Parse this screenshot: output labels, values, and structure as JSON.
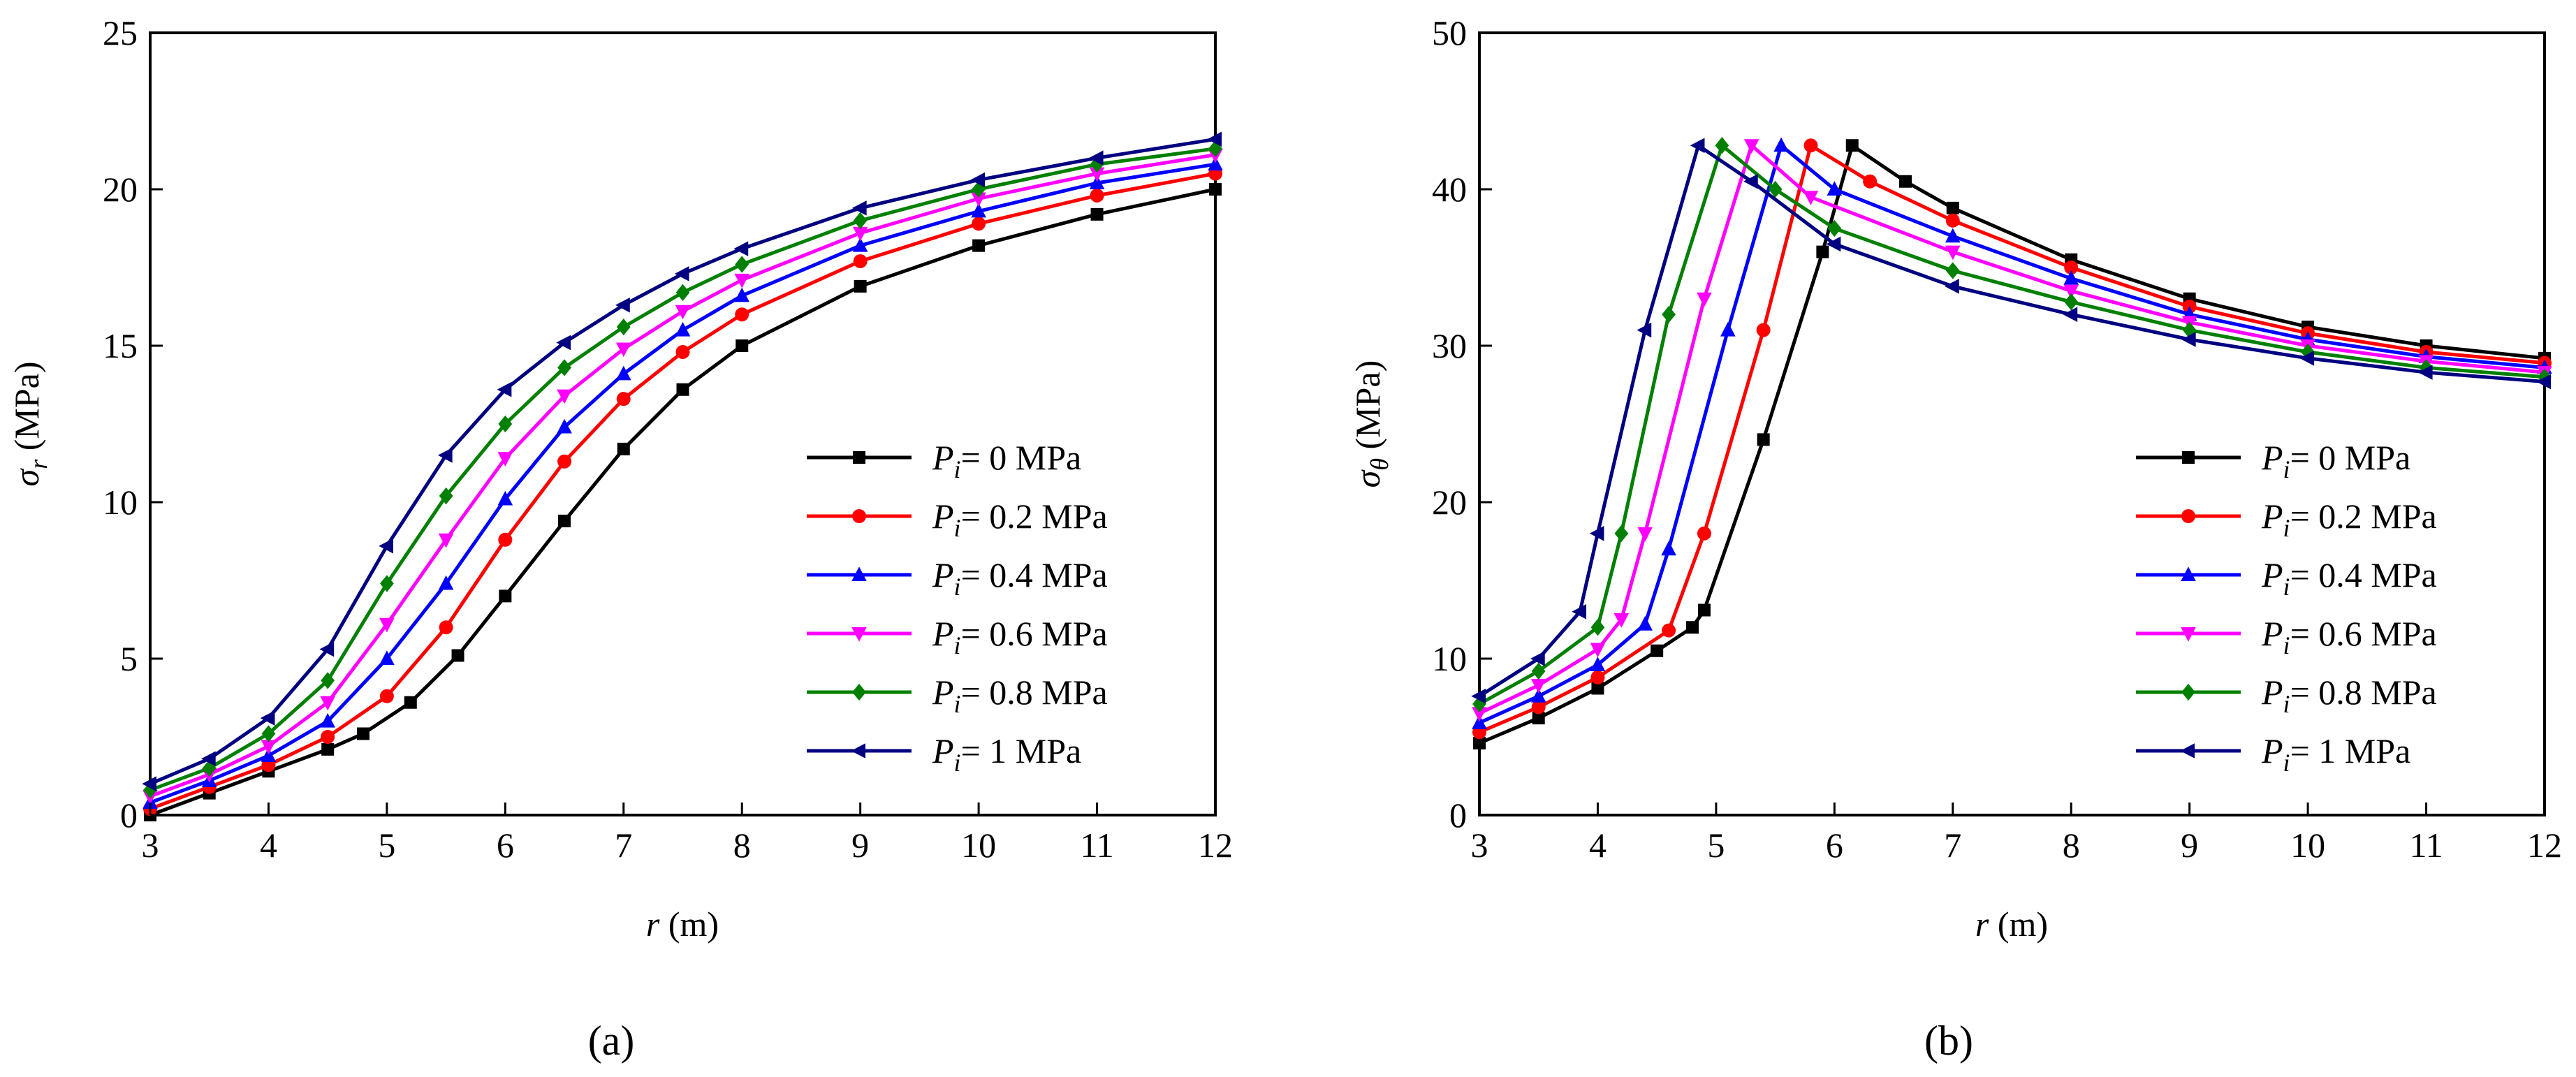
{
  "chart_data": [
    {
      "panel_label": "(a)",
      "type": "line",
      "xlabel": "r (m)",
      "xlabel_var": "r",
      "xlabel_unit": " (m)",
      "ylabel": "σr (MPa)",
      "ylabel_var": "σ",
      "ylabel_sub": "r",
      "ylabel_unit": " (MPa)",
      "xlim": [
        3,
        12
      ],
      "ylim": [
        0,
        25
      ],
      "xticks": [
        3,
        4,
        5,
        6,
        7,
        8,
        9,
        10,
        11,
        12
      ],
      "yticks": [
        0,
        5,
        10,
        15,
        20,
        25
      ],
      "legend_position": "center-right",
      "series": [
        {
          "name": "Pi = 0 MPa",
          "label_value": "= 0 MPa",
          "color": "#000000",
          "marker": "square",
          "x": [
            3,
            3.5,
            4,
            4.5,
            4.8,
            5.2,
            5.6,
            6,
            6.5,
            7,
            7.5,
            8,
            9,
            10,
            11,
            12
          ],
          "y": [
            0,
            0.7,
            1.4,
            2.1,
            2.6,
            3.6,
            5.1,
            7.0,
            9.4,
            11.7,
            13.6,
            15.0,
            16.9,
            18.2,
            19.2,
            20.0
          ]
        },
        {
          "name": "Pi = 0.2 MPa",
          "label_value": "= 0.2 MPa",
          "color": "#ff0000",
          "marker": "circle",
          "x": [
            3,
            3.5,
            4,
            4.5,
            5,
            5.5,
            6,
            6.5,
            7,
            7.5,
            8,
            9,
            10,
            11,
            12
          ],
          "y": [
            0.2,
            0.9,
            1.6,
            2.5,
            3.8,
            6.0,
            8.8,
            11.3,
            13.3,
            14.8,
            16.0,
            17.7,
            18.9,
            19.8,
            20.5
          ]
        },
        {
          "name": "Pi = 0.4 MPa",
          "label_value": "= 0.4 MPa",
          "color": "#0000ff",
          "marker": "triangle-up",
          "x": [
            3,
            3.5,
            4,
            4.5,
            5,
            5.5,
            6,
            6.5,
            7,
            7.5,
            8,
            9,
            10,
            11,
            12
          ],
          "y": [
            0.4,
            1.1,
            1.9,
            3.0,
            5.0,
            7.4,
            10.1,
            12.4,
            14.1,
            15.5,
            16.6,
            18.2,
            19.3,
            20.2,
            20.8
          ]
        },
        {
          "name": "Pi = 0.6 MPa",
          "label_value": "= 0.6 MPa",
          "color": "#ff00ff",
          "marker": "triangle-down",
          "x": [
            3,
            3.5,
            4,
            4.5,
            5,
            5.5,
            6,
            6.5,
            7,
            7.5,
            8,
            9,
            10,
            11,
            12
          ],
          "y": [
            0.6,
            1.3,
            2.2,
            3.6,
            6.1,
            8.8,
            11.4,
            13.4,
            14.9,
            16.1,
            17.1,
            18.6,
            19.7,
            20.5,
            21.1
          ]
        },
        {
          "name": "Pi = 0.8 MPa",
          "label_value": "= 0.8 MPa",
          "color": "#008000",
          "marker": "diamond",
          "x": [
            3,
            3.5,
            4,
            4.5,
            5,
            5.5,
            6,
            6.5,
            7,
            7.5,
            8,
            9,
            10,
            11,
            12
          ],
          "y": [
            0.8,
            1.5,
            2.6,
            4.3,
            7.4,
            10.2,
            12.5,
            14.3,
            15.6,
            16.7,
            17.6,
            19.0,
            20.0,
            20.8,
            21.3
          ]
        },
        {
          "name": "Pi = 1 MPa",
          "label_value": "= 1 MPa",
          "color": "#000080",
          "marker": "triangle-left",
          "x": [
            3,
            3.5,
            4,
            4.5,
            5,
            5.5,
            6,
            6.5,
            7,
            7.5,
            8,
            9,
            10,
            11,
            12
          ],
          "y": [
            1.0,
            1.8,
            3.1,
            5.3,
            8.6,
            11.5,
            13.6,
            15.1,
            16.3,
            17.3,
            18.1,
            19.4,
            20.3,
            21.0,
            21.6
          ]
        }
      ]
    },
    {
      "panel_label": "(b)",
      "type": "line",
      "xlabel": "r (m)",
      "xlabel_var": "r",
      "xlabel_unit": " (m)",
      "ylabel": "σθ (MPa)",
      "ylabel_var": "σ",
      "ylabel_sub": "θ",
      "ylabel_unit": " (MPa)",
      "xlim": [
        3,
        12
      ],
      "ylim": [
        0,
        50
      ],
      "xticks": [
        3,
        4,
        5,
        6,
        7,
        8,
        9,
        10,
        11,
        12
      ],
      "yticks": [
        0,
        10,
        20,
        30,
        40,
        50
      ],
      "legend_position": "center-right",
      "series": [
        {
          "name": "Pi = 0 MPa",
          "label_value": "= 0 MPa",
          "color": "#000000",
          "marker": "square",
          "x": [
            3,
            3.5,
            4,
            4.5,
            4.8,
            4.9,
            5.4,
            5.9,
            6.15,
            6.6,
            7,
            8,
            9,
            10,
            11,
            12
          ],
          "y": [
            4.6,
            6.2,
            8.1,
            10.5,
            12.0,
            13.1,
            24.0,
            36.0,
            42.8,
            40.5,
            38.8,
            35.5,
            33.0,
            31.2,
            30.0,
            29.2
          ]
        },
        {
          "name": "Pi = 0.2 MPa",
          "label_value": "= 0.2 MPa",
          "color": "#ff0000",
          "marker": "circle",
          "x": [
            3,
            3.5,
            4,
            4.6,
            4.9,
            5.4,
            5.8,
            6.3,
            7,
            8,
            9,
            10,
            11,
            12
          ],
          "y": [
            5.3,
            6.9,
            8.8,
            11.8,
            18.0,
            31.0,
            42.8,
            40.5,
            38.0,
            35.0,
            32.5,
            30.8,
            29.6,
            28.9
          ]
        },
        {
          "name": "Pi = 0.4 MPa",
          "label_value": "= 0.4 MPa",
          "color": "#0000ff",
          "marker": "triangle-up",
          "x": [
            3,
            3.5,
            4,
            4.4,
            4.6,
            5.1,
            5.55,
            6,
            7,
            8,
            9,
            10,
            11,
            12
          ],
          "y": [
            5.9,
            7.6,
            9.6,
            12.2,
            17.0,
            31.0,
            42.8,
            40.0,
            37.0,
            34.3,
            32.0,
            30.4,
            29.3,
            28.6
          ]
        },
        {
          "name": "Pi = 0.6 MPa",
          "label_value": "= 0.6 MPa",
          "color": "#ff00ff",
          "marker": "triangle-down",
          "x": [
            3,
            3.5,
            4,
            4.2,
            4.4,
            4.9,
            5.3,
            5.8,
            7,
            8,
            9,
            10,
            11,
            12
          ],
          "y": [
            6.5,
            8.3,
            10.6,
            12.5,
            18.0,
            33.0,
            42.8,
            39.5,
            36.0,
            33.5,
            31.5,
            30.0,
            29.0,
            28.3
          ]
        },
        {
          "name": "Pi = 0.8 MPa",
          "label_value": "= 0.8 MPa",
          "color": "#008000",
          "marker": "diamond",
          "x": [
            3,
            3.5,
            4,
            4.2,
            4.6,
            5.05,
            5.5,
            6,
            7,
            8,
            9,
            10,
            11,
            12
          ],
          "y": [
            7.1,
            9.2,
            12.0,
            18.0,
            32.0,
            42.8,
            40.0,
            37.5,
            34.8,
            32.8,
            31.0,
            29.6,
            28.6,
            28.0
          ]
        },
        {
          "name": "Pi = 1 MPa",
          "label_value": "= 1 MPa",
          "color": "#000080",
          "marker": "triangle-left",
          "x": [
            3,
            3.5,
            3.85,
            4.0,
            4.4,
            4.85,
            5.3,
            6,
            7,
            8,
            9,
            10,
            11,
            12
          ],
          "y": [
            7.6,
            10.0,
            13.0,
            18.0,
            31.0,
            42.8,
            40.5,
            36.5,
            33.8,
            32.0,
            30.4,
            29.2,
            28.3,
            27.7
          ]
        }
      ]
    }
  ]
}
